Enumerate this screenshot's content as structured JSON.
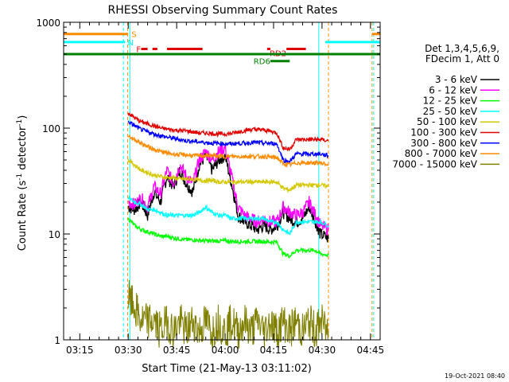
{
  "chart_data": {
    "type": "line",
    "title": "RHESSI Observing Summary Count Rates",
    "xlabel": "Start Time (21-May-13 03:11:02)",
    "ylabel": "Count Rate (s⁻¹ detector⁻¹)",
    "ylabel_main": "Count Rate (s",
    "ylabel_sup1": "-1",
    "ylabel_mid": " detector",
    "ylabel_sup2": "-1",
    "ylabel_end": ")",
    "y_scale": "log",
    "ylim": [
      1,
      1000
    ],
    "xlim": [
      "03:10",
      "04:48"
    ],
    "xlim_min": [
      190,
      288
    ],
    "x_ticks": [
      {
        "label": "03:15",
        "min": 195
      },
      {
        "label": "03:30",
        "min": 210
      },
      {
        "label": "03:45",
        "min": 225
      },
      {
        "label": "04:00",
        "min": 240
      },
      {
        "label": "04:15",
        "min": 255
      },
      {
        "label": "04:30",
        "min": 270
      },
      {
        "label": "04:45",
        "min": 285
      }
    ],
    "y_ticks": [
      {
        "label": "1",
        "value": 1
      },
      {
        "label": "10",
        "value": 10
      },
      {
        "label": "100",
        "value": 100
      },
      {
        "label": "1000",
        "value": 1000
      }
    ],
    "legend": {
      "placement": "right",
      "header": [
        "Det 1,3,4,5,6,9,",
        "FDecim 1, Att 0"
      ],
      "entries": [
        {
          "label": "3 - 6 keV",
          "color": "#000000"
        },
        {
          "label": "6 - 12 keV",
          "color": "#ff00ff"
        },
        {
          "label": "12 - 25 keV",
          "color": "#00ff00"
        },
        {
          "label": "25 - 50 keV",
          "color": "#00ffff"
        },
        {
          "label": "50 - 100 keV",
          "color": "#d4c800"
        },
        {
          "label": "100 - 300 keV",
          "color": "#e00000"
        },
        {
          "label": "300 - 800 keV",
          "color": "#0000ff"
        },
        {
          "label": "800 - 7000 keV",
          "color": "#ff8c00"
        },
        {
          "label": "7000 - 15000 keV",
          "color": "#808000"
        }
      ]
    },
    "series": [
      {
        "name": "3 - 6 keV",
        "color": "#000000",
        "x": [
          210,
          212,
          214,
          216,
          218,
          220,
          222,
          224,
          226,
          228,
          230,
          232,
          234,
          236,
          238,
          240,
          242,
          244,
          246,
          248,
          250,
          252,
          254,
          256,
          258,
          260,
          262,
          264,
          266,
          268,
          269.5,
          272
        ],
        "y": [
          18,
          17,
          20,
          15,
          25,
          20,
          35,
          28,
          40,
          30,
          25,
          45,
          55,
          40,
          50,
          55,
          30,
          15,
          13,
          12,
          11,
          12,
          11,
          12,
          16,
          14,
          13,
          14,
          18,
          13,
          10,
          9
        ]
      },
      {
        "name": "6 - 12 keV",
        "color": "#ff00ff",
        "x": [
          210,
          212,
          214,
          216,
          218,
          220,
          222,
          224,
          226,
          228,
          230,
          232,
          234,
          236,
          238,
          240,
          242,
          244,
          246,
          248,
          250,
          252,
          254,
          256,
          258,
          260,
          262,
          264,
          266,
          268,
          269.5,
          272
        ],
        "y": [
          20,
          19,
          22,
          18,
          28,
          24,
          40,
          30,
          45,
          35,
          30,
          50,
          60,
          50,
          60,
          65,
          35,
          18,
          15,
          14,
          13,
          14,
          13,
          13,
          18,
          16,
          15,
          16,
          20,
          15,
          12,
          11
        ]
      },
      {
        "name": "12 - 25 keV",
        "color": "#00ff00",
        "x": [
          210,
          212,
          214,
          216,
          218,
          220,
          222,
          224,
          226,
          228,
          230,
          232,
          234,
          236,
          238,
          240,
          242,
          244,
          246,
          248,
          250,
          252,
          254,
          256,
          258,
          260,
          262,
          264,
          266,
          268,
          269.5,
          272
        ],
        "y": [
          14,
          12,
          11,
          10.5,
          10,
          9.5,
          9.5,
          9.2,
          9,
          8.8,
          8.8,
          8.7,
          8.6,
          8.6,
          8.6,
          8.6,
          8.5,
          8.5,
          8.5,
          8.5,
          8.5,
          8.5,
          8.4,
          8.4,
          6.5,
          6.2,
          7,
          7,
          7,
          7,
          6.5,
          6.3
        ]
      },
      {
        "name": "25 - 50 keV",
        "color": "#00ffff",
        "x": [
          210,
          212,
          214,
          216,
          218,
          220,
          222,
          224,
          226,
          228,
          230,
          232,
          234,
          236,
          238,
          240,
          242,
          244,
          246,
          248,
          250,
          252,
          254,
          256,
          258,
          260,
          262,
          264,
          266,
          268,
          269.5,
          272
        ],
        "y": [
          22,
          20,
          19,
          17,
          17,
          16,
          15,
          15,
          15,
          15,
          15,
          16,
          18,
          16,
          15,
          15,
          14,
          14,
          14,
          14,
          14,
          14,
          13,
          13,
          11,
          10,
          13,
          13,
          13,
          13,
          13,
          12
        ]
      },
      {
        "name": "50 - 100 keV",
        "color": "#d4c800",
        "x": [
          210,
          212,
          214,
          216,
          218,
          220,
          222,
          224,
          226,
          228,
          230,
          232,
          234,
          236,
          238,
          240,
          242,
          244,
          246,
          248,
          250,
          252,
          254,
          256,
          258,
          260,
          262,
          264,
          266,
          268,
          269.5,
          272
        ],
        "y": [
          50,
          45,
          40,
          38,
          36,
          35,
          34,
          34,
          33,
          33,
          33,
          32,
          32,
          32,
          31,
          31,
          31,
          31,
          31,
          31,
          31,
          31,
          31,
          31,
          27,
          26,
          29,
          29,
          29,
          29,
          29,
          28
        ]
      },
      {
        "name": "100 - 300 keV",
        "color": "#e00000",
        "x": [
          210,
          212,
          214,
          216,
          218,
          220,
          222,
          224,
          226,
          228,
          230,
          232,
          234,
          236,
          238,
          240,
          242,
          244,
          246,
          248,
          250,
          252,
          254,
          256,
          258,
          260,
          262,
          264,
          266,
          268,
          269.5,
          272
        ],
        "y": [
          140,
          125,
          115,
          110,
          105,
          100,
          98,
          96,
          95,
          94,
          92,
          90,
          90,
          89,
          88,
          88,
          89,
          92,
          95,
          97,
          97,
          96,
          94,
          90,
          65,
          63,
          78,
          78,
          78,
          78,
          78,
          76
        ]
      },
      {
        "name": "300 - 800 keV",
        "color": "#0000ff",
        "x": [
          210,
          212,
          214,
          216,
          218,
          220,
          222,
          224,
          226,
          228,
          230,
          232,
          234,
          236,
          238,
          240,
          242,
          244,
          246,
          248,
          250,
          252,
          254,
          256,
          258,
          260,
          262,
          264,
          266,
          268,
          269.5,
          272
        ],
        "y": [
          115,
          105,
          97,
          92,
          88,
          85,
          82,
          80,
          78,
          76,
          75,
          74,
          73,
          72,
          72,
          71,
          71,
          72,
          72,
          73,
          73,
          72,
          72,
          71,
          50,
          48,
          57,
          57,
          57,
          57,
          57,
          55
        ]
      },
      {
        "name": "800 - 7000 keV",
        "color": "#ff8c00",
        "x": [
          210,
          212,
          214,
          216,
          218,
          220,
          222,
          224,
          226,
          228,
          230,
          232,
          234,
          236,
          238,
          240,
          242,
          244,
          246,
          248,
          250,
          252,
          254,
          256,
          258,
          260,
          262,
          264,
          266,
          268,
          269.5,
          272
        ],
        "y": [
          85,
          78,
          72,
          67,
          63,
          60,
          58,
          57,
          56,
          56,
          55,
          55,
          55,
          55,
          54,
          54,
          54,
          54,
          54,
          54,
          54,
          54,
          53,
          53,
          46,
          45,
          47,
          47,
          47,
          47,
          47,
          45
        ]
      },
      {
        "name": "7000 - 15000 keV",
        "color": "#808000",
        "x": [
          210,
          212,
          214,
          216,
          218,
          220,
          222,
          224,
          226,
          228,
          230,
          232,
          234,
          236,
          238,
          240,
          242,
          244,
          246,
          248,
          250,
          252,
          254,
          256,
          258,
          260,
          262,
          264,
          266,
          268,
          269.5,
          272
        ],
        "y": [
          2.5,
          2,
          1.5,
          1.5,
          1.5,
          1.2,
          1.5,
          1.2,
          1.5,
          1.2,
          1.5,
          1.2,
          1.5,
          1.2,
          1.5,
          1.2,
          1.5,
          1.2,
          1.5,
          1.2,
          1.5,
          1.2,
          1.5,
          1.2,
          1.5,
          1.2,
          1.5,
          1.2,
          1.5,
          1.2,
          1.5,
          1.2
        ]
      }
    ],
    "state_bars": [
      {
        "label": "S",
        "color": "#ff8c00",
        "y": 775,
        "segments": [
          [
            190,
            210
          ],
          [
            285.5,
            288
          ]
        ]
      },
      {
        "label": "N",
        "color": "#00ffff",
        "y": 650,
        "segments": [
          [
            190,
            209
          ],
          [
            271,
            288
          ]
        ]
      },
      {
        "label": "F",
        "color": "#e00000",
        "y": 560,
        "segments": [
          [
            214,
            216
          ],
          [
            217.5,
            219
          ],
          [
            222,
            233
          ],
          [
            253,
            254
          ],
          [
            259,
            265
          ]
        ]
      },
      {
        "label": "RD2",
        "color": "#e00000",
        "y": 560,
        "segments": []
      },
      {
        "label": "",
        "color": "#008000",
        "y": 500,
        "segments": [
          [
            190,
            288
          ]
        ]
      },
      {
        "label": "RD6",
        "color": "#008000",
        "y": 430,
        "segments": [
          [
            254,
            260
          ]
        ]
      }
    ],
    "vlines": [
      {
        "color": "#00ffff",
        "dashed": false,
        "min": 190
      },
      {
        "color": "#00ffff",
        "dashed": true,
        "min": 208.5
      },
      {
        "color": "#ff8c00",
        "dashed": true,
        "min": 209.8
      },
      {
        "color": "#00ffff",
        "dashed": false,
        "min": 210.5
      },
      {
        "color": "#00ffff",
        "dashed": false,
        "min": 269
      },
      {
        "color": "#ff8c00",
        "dashed": true,
        "min": 272
      },
      {
        "color": "#ff8c00",
        "dashed": true,
        "min": 285.5
      },
      {
        "color": "#00ffff",
        "dashed": true,
        "min": 286
      }
    ],
    "timestamp": "19-Oct-2021 08:40"
  }
}
